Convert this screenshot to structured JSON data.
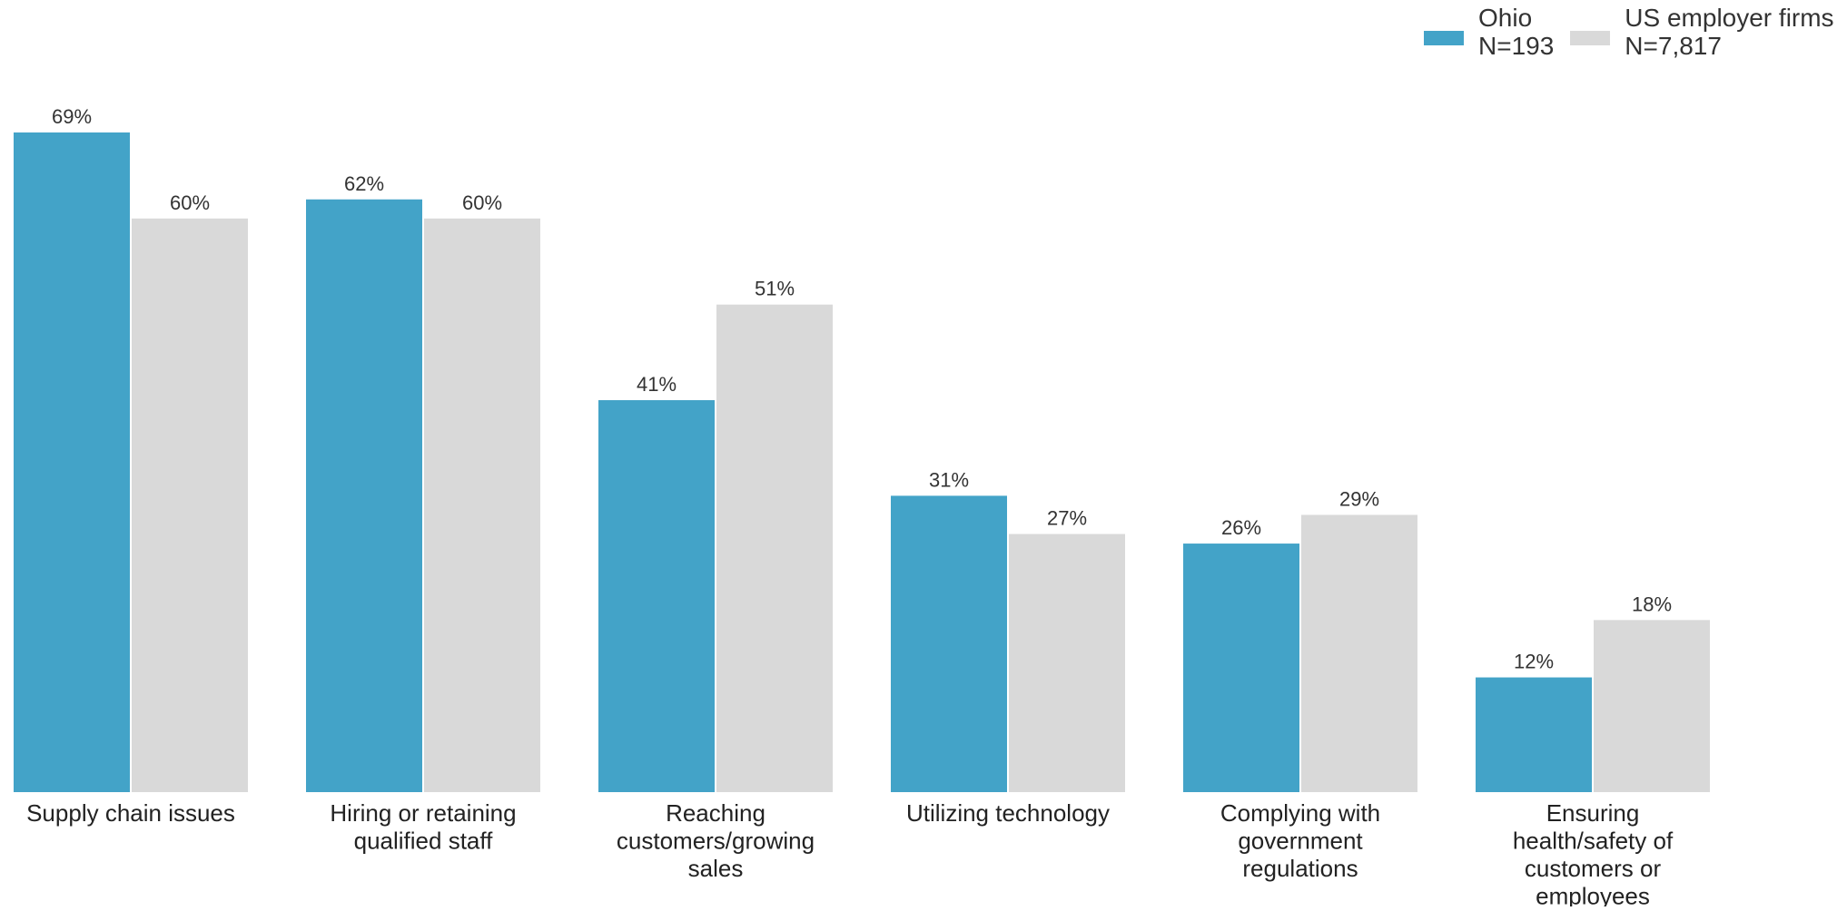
{
  "legend": {
    "items": [
      {
        "name": "Ohio",
        "sub": "N=193",
        "color": "#43a3c8"
      },
      {
        "name": "US employer firms",
        "sub": "N=7,817",
        "color": "#d9d9d9"
      }
    ]
  },
  "chart_data": {
    "type": "bar",
    "title": "",
    "xlabel": "",
    "ylabel": "",
    "ylim": [
      0,
      69
    ],
    "grid": false,
    "legend_position": "top-right",
    "categories": [
      [
        "Supply chain issues"
      ],
      [
        "Hiring or retaining",
        "qualified staff"
      ],
      [
        "Reaching",
        "customers/growing",
        "sales"
      ],
      [
        "Utilizing technology"
      ],
      [
        "Complying with",
        "government",
        "regulations"
      ],
      [
        "Ensuring",
        "health/safety of",
        "customers or",
        "employees"
      ]
    ],
    "series": [
      {
        "name": "Ohio",
        "color": "#43a3c8",
        "values": [
          69,
          62,
          41,
          31,
          26,
          12
        ],
        "labels": [
          "69%",
          "62%",
          "41%",
          "31%",
          "26%",
          "12%"
        ]
      },
      {
        "name": "US employer firms",
        "color": "#d9d9d9",
        "values": [
          60,
          60,
          51,
          27,
          29,
          18
        ],
        "labels": [
          "60%",
          "60%",
          "51%",
          "27%",
          "29%",
          "18%"
        ]
      }
    ]
  }
}
